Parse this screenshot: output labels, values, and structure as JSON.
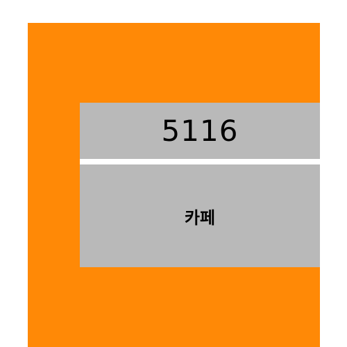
{
  "sign": {
    "number": "5116",
    "label": "카페"
  },
  "colors": {
    "panel": "#ff8906",
    "block": "#b9b9b9",
    "divider": "#ffffff",
    "text": "#000000"
  }
}
